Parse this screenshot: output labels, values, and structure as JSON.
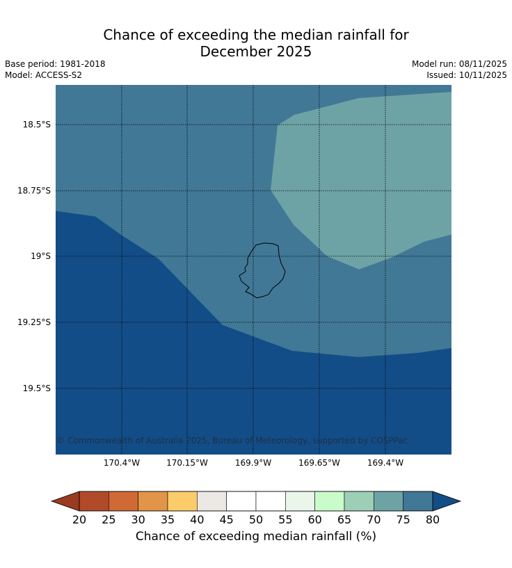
{
  "title": {
    "line1": "Chance of exceeding the median rainfall for",
    "line2": "December 2025"
  },
  "meta": {
    "base_period": "Base period: 1981-2018",
    "model": "Model: ACCESS-S2",
    "model_run": "Model run: 08/11/2025",
    "issued": "Issued: 10/11/2025"
  },
  "map": {
    "lat_ticks": [
      "18.5°S",
      "18.75°S",
      "19°S",
      "19.25°S",
      "19.5°S"
    ],
    "lon_ticks": [
      "170.4°W",
      "170.15°W",
      "169.9°W",
      "169.65°W",
      "169.4°W"
    ],
    "copyright": "© Commonwealth of Australia 2025, Bureau of Meteorology, supported by COSPPac",
    "gridlines": true,
    "regions": [
      {
        "name": "above-80",
        "color": "#134d87"
      },
      {
        "name": "75-80",
        "color": "#417896"
      },
      {
        "name": "70-75",
        "color": "#6ea3a5"
      }
    ]
  },
  "colorbar": {
    "label": "Chance of exceeding median rainfall (%)",
    "ticks": [
      "20",
      "25",
      "30",
      "35",
      "40",
      "45",
      "50",
      "55",
      "60",
      "65",
      "70",
      "75",
      "80"
    ],
    "colors": [
      "#b04a28",
      "#cf6935",
      "#e29448",
      "#fccc6a",
      "#ece8e3",
      "#ffffff",
      "#ffffff",
      "#eaf6ea",
      "#c9fbcb",
      "#9dcfb6",
      "#6ea3a5",
      "#417896"
    ],
    "under_color": "#9a3b20",
    "over_color": "#134d87"
  }
}
